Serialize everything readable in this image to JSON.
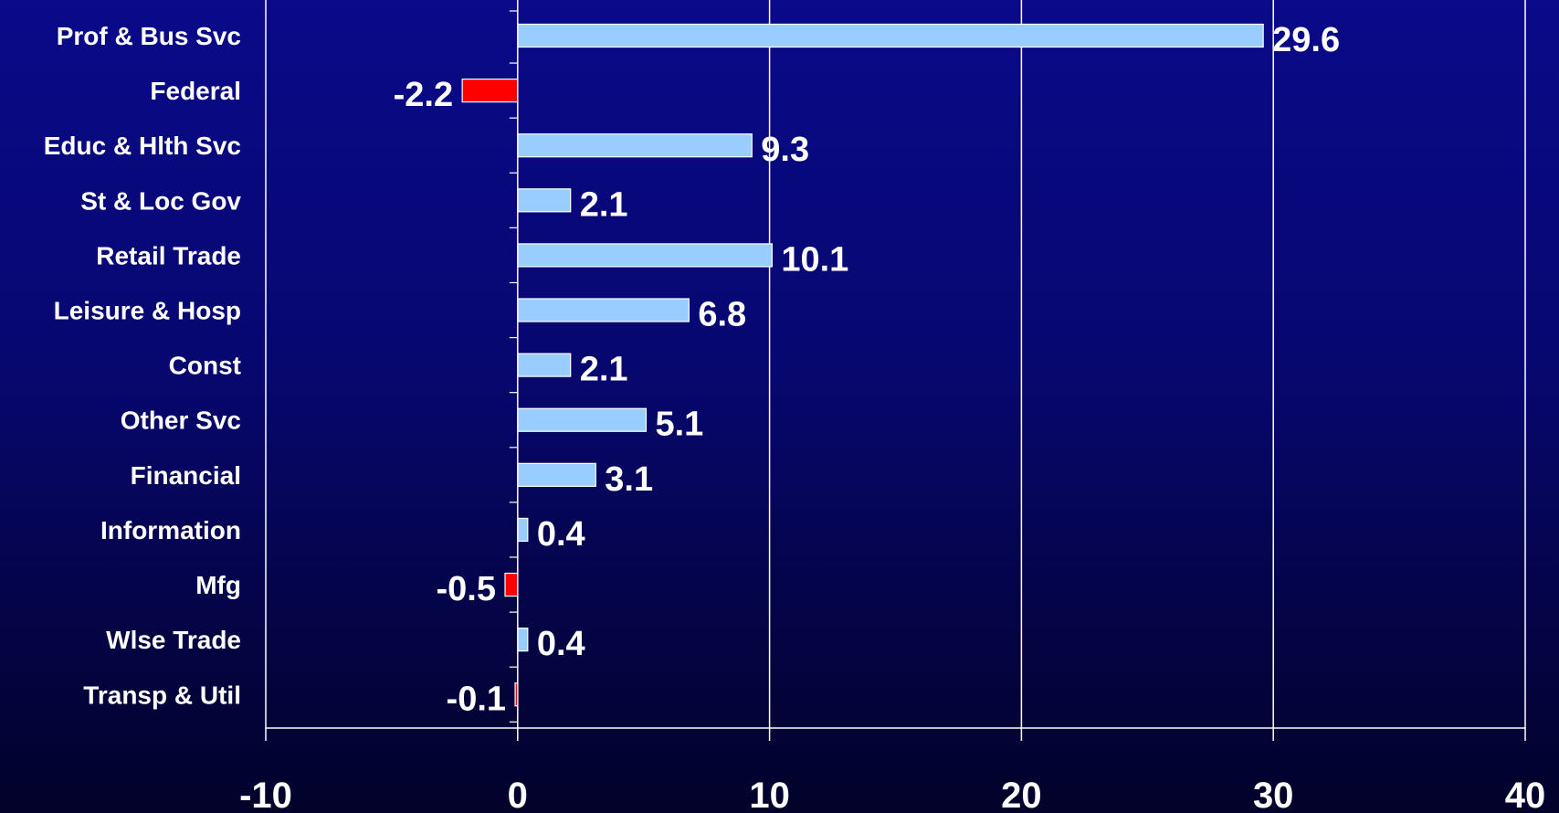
{
  "chart_data": {
    "type": "bar",
    "orientation": "horizontal",
    "categories": [
      "Prof & Bus Svc",
      "Federal",
      "Educ & Hlth Svc",
      "St & Loc Gov",
      "Retail Trade",
      "Leisure & Hosp",
      "Const",
      "Other Svc",
      "Financial",
      "Information",
      "Mfg",
      "Wlse Trade",
      "Transp & Util"
    ],
    "values": [
      29.6,
      -2.2,
      9.3,
      2.1,
      10.1,
      6.8,
      2.1,
      5.1,
      3.1,
      0.4,
      -0.5,
      0.4,
      -0.1
    ],
    "value_labels": [
      "29.6",
      "-2.2",
      "9.3",
      "2.1",
      "10.1",
      "6.8",
      "2.1",
      "5.1",
      "3.1",
      "0.4",
      "-0.5",
      "0.4",
      "-0.1"
    ],
    "xlim": [
      -10,
      40
    ],
    "xticks": [
      -10,
      0,
      10,
      20,
      30,
      40
    ],
    "xtick_labels": [
      "-10",
      "0",
      "10",
      "20",
      "30",
      "40"
    ],
    "title": "",
    "xlabel": "",
    "ylabel": "",
    "grid": "vertical",
    "colors": {
      "positive": "#99ccff",
      "negative": "#ff0000",
      "grid": "#ffffff",
      "text": "#ffffff"
    }
  }
}
